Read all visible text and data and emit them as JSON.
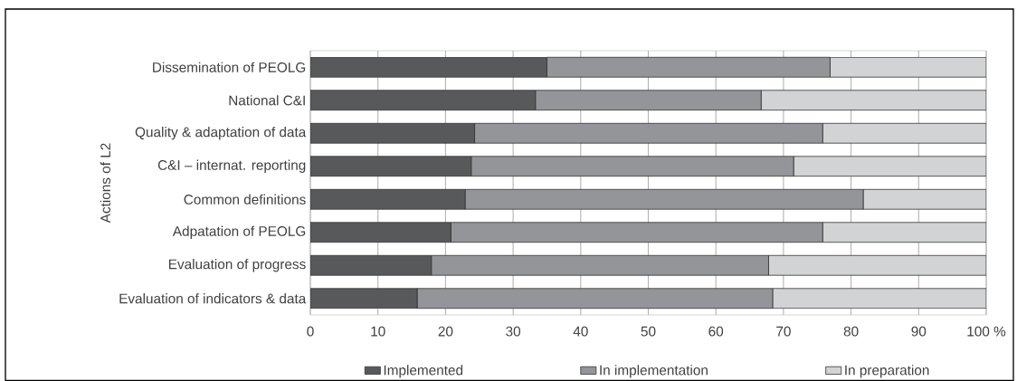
{
  "chart_data": {
    "type": "bar",
    "orientation": "horizontal",
    "stacked": true,
    "ylabel": "Actions of L2",
    "categories": [
      "Dissemination of PEOLG",
      "National C&I",
      "Quality & adaptation of data",
      "C&I – internat. reporting",
      "Common definitions",
      "Adpatation of PEOLG",
      "Evaluation of progress",
      "Evaluation of indicators & data"
    ],
    "series": [
      {
        "name": "Implemented",
        "color": "#58595b",
        "values": [
          35,
          33.3,
          24.3,
          23.8,
          22.9,
          20.8,
          17.9,
          15.8
        ]
      },
      {
        "name": "In implementation",
        "color": "#939598",
        "values": [
          41.9,
          33.4,
          51.5,
          47.7,
          58.9,
          55.0,
          49.9,
          52.6
        ]
      },
      {
        "name": "In preparation",
        "color": "#d1d3d4",
        "values": [
          23.1,
          33.3,
          24.2,
          28.5,
          18.2,
          24.2,
          32.2,
          31.6
        ]
      }
    ],
    "xlim": [
      0,
      100
    ],
    "xticks": [
      0,
      10,
      20,
      30,
      40,
      50,
      60,
      70,
      80,
      90,
      {
        "value": 100,
        "label": "100 %"
      }
    ],
    "grid": "x",
    "legend": "bottom"
  }
}
